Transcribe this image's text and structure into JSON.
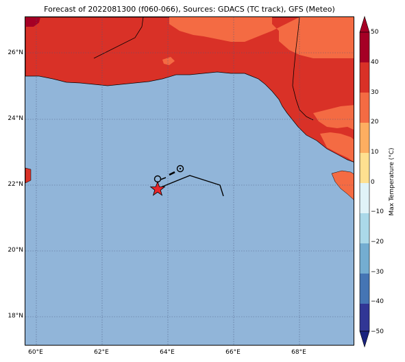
{
  "title": "Forecast of 2022081300 (f060-066), Sources: GDACS (TC track), GFS (Meteo)",
  "map": {
    "lat_ticks": [
      "26°N",
      "24°N",
      "22°N",
      "20°N",
      "18°N"
    ],
    "lon_ticks": [
      "60°E",
      "62°E",
      "64°E",
      "66°E",
      "68°E"
    ],
    "colors": {
      "sea": "#91b5d9",
      "land_30_40": "#d93127",
      "land_20_30": "#f46b43",
      "land_40_50": "#a50025",
      "cold_n40_n50": "#3c4da2"
    }
  },
  "colorbar": {
    "label": "Max Temperature (°C)",
    "ticks": [
      "50",
      "40",
      "30",
      "20",
      "10",
      "0",
      "−10",
      "−20",
      "−30",
      "−40",
      "−50"
    ],
    "colors": [
      "#a50025",
      "#d93127",
      "#f46b43",
      "#fdae61",
      "#fee090",
      "#ffffbf",
      "#e0f3f8",
      "#abd9e9",
      "#74add1",
      "#4575b4",
      "#313695"
    ]
  }
}
